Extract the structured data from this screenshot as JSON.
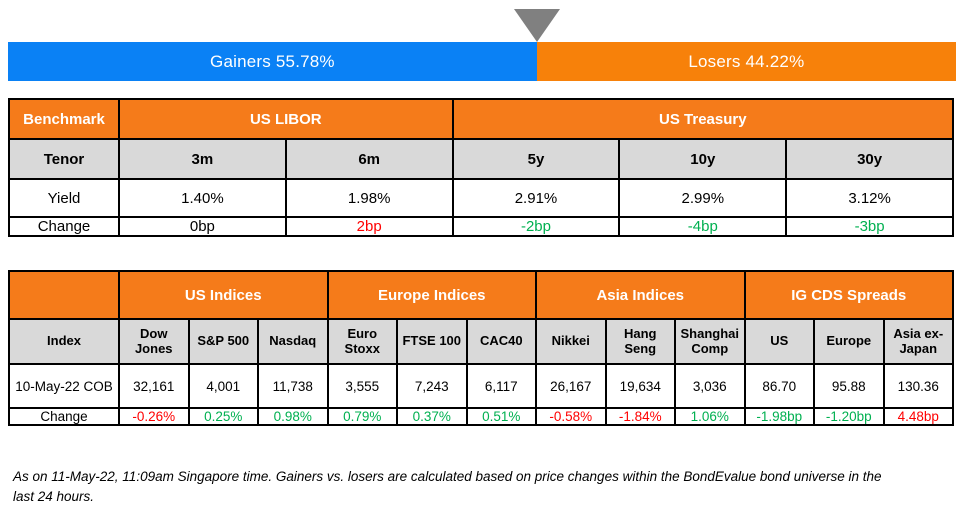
{
  "palette": {
    "blue": "#0A81F5",
    "bar_orange": "#F7810A",
    "header_orange": "#F57B1A",
    "subheader_gray": "#D9D9D9",
    "green": "#00B050",
    "red": "#FF0000",
    "triangle_gray": "#808080",
    "border_black": "#000000"
  },
  "gainers_losers": {
    "gainers_label": "Gainers 55.78%",
    "losers_label": "Losers 44.22%",
    "gainers_pct": 55.78,
    "losers_pct": 44.22
  },
  "benchmark_table": {
    "corner_label": "Benchmark",
    "groups": [
      {
        "label": "US LIBOR",
        "span": 2
      },
      {
        "label": "US Treasury",
        "span": 3
      }
    ],
    "rows": [
      {
        "label": "Tenor",
        "type": "subheader",
        "cells": [
          {
            "text": "3m"
          },
          {
            "text": "6m"
          },
          {
            "text": "5y"
          },
          {
            "text": "10y"
          },
          {
            "text": "30y"
          }
        ]
      },
      {
        "label": "Yield",
        "type": "data",
        "cells": [
          {
            "text": "1.40%"
          },
          {
            "text": "1.98%"
          },
          {
            "text": "2.91%"
          },
          {
            "text": "2.99%"
          },
          {
            "text": "3.12%"
          }
        ]
      },
      {
        "label": "Change",
        "type": "data",
        "cells": [
          {
            "text": "0bp"
          },
          {
            "text": "2bp",
            "color": "red"
          },
          {
            "text": "-2bp",
            "color": "green"
          },
          {
            "text": "-4bp",
            "color": "green"
          },
          {
            "text": "-3bp",
            "color": "green"
          }
        ]
      }
    ]
  },
  "indices_table": {
    "corner_label": "",
    "column_header_label": "Index",
    "groups": [
      {
        "label": "US Indices",
        "span": 3
      },
      {
        "label": "Europe Indices",
        "span": 3
      },
      {
        "label": "Asia Indices",
        "span": 3
      },
      {
        "label": "IG CDS Spreads",
        "span": 3
      }
    ],
    "columns": [
      "Dow Jones",
      "S&P 500",
      "Nasdaq",
      "Euro Stoxx",
      "FTSE 100",
      "CAC40",
      "Nikkei",
      "Hang Seng",
      "Shanghai Comp",
      "US",
      "Europe",
      "Asia ex-Japan"
    ],
    "rows": [
      {
        "label": "10-May-22 COB",
        "type": "data",
        "cells": [
          {
            "text": "32,161"
          },
          {
            "text": "4,001"
          },
          {
            "text": "11,738"
          },
          {
            "text": "3,555"
          },
          {
            "text": "7,243"
          },
          {
            "text": "6,117"
          },
          {
            "text": "26,167"
          },
          {
            "text": "19,634"
          },
          {
            "text": "3,036"
          },
          {
            "text": "86.70"
          },
          {
            "text": "95.88"
          },
          {
            "text": "130.36"
          }
        ]
      },
      {
        "label": "Change",
        "type": "data",
        "cells": [
          {
            "text": "-0.26%",
            "color": "red"
          },
          {
            "text": "0.25%",
            "color": "green"
          },
          {
            "text": "0.98%",
            "color": "green"
          },
          {
            "text": "0.79%",
            "color": "green"
          },
          {
            "text": "0.37%",
            "color": "green"
          },
          {
            "text": "0.51%",
            "color": "green"
          },
          {
            "text": "-0.58%",
            "color": "red"
          },
          {
            "text": "-1.84%",
            "color": "red"
          },
          {
            "text": "1.06%",
            "color": "green"
          },
          {
            "text": "-1.98bp",
            "color": "green"
          },
          {
            "text": "-1.20bp",
            "color": "green"
          },
          {
            "text": "4.48bp",
            "color": "red"
          }
        ]
      }
    ]
  },
  "footer": {
    "note": "As on 11-May-22, 11:09am Singapore time. Gainers vs. losers are calculated based on price changes within the BondEvalue bond universe in the last 24 hours."
  },
  "chart_data": [
    {
      "type": "bar",
      "title": "Gainers vs. Losers",
      "categories": [
        "Gainers",
        "Losers"
      ],
      "values": [
        55.78,
        44.22
      ],
      "unit": "%",
      "layout": "horizontal 100% stacked bar with marker at split",
      "colors": [
        "#0A81F5",
        "#F7810A"
      ]
    },
    {
      "type": "table",
      "title": "Benchmark",
      "column_groups": [
        "US LIBOR (3m, 6m)",
        "US Treasury (5y, 10y, 30y)"
      ],
      "columns": [
        "Tenor",
        "3m",
        "6m",
        "5y",
        "10y",
        "30y"
      ],
      "rows": [
        [
          "Yield",
          "1.40%",
          "1.98%",
          "2.91%",
          "2.99%",
          "3.12%"
        ],
        [
          "Change",
          "0bp",
          "2bp",
          "-2bp",
          "-4bp",
          "-3bp"
        ]
      ]
    },
    {
      "type": "table",
      "title": "Indices and IG CDS Spreads",
      "column_groups": [
        "US Indices",
        "Europe Indices",
        "Asia Indices",
        "IG CDS Spreads"
      ],
      "columns": [
        "Index",
        "Dow Jones",
        "S&P 500",
        "Nasdaq",
        "Euro Stoxx",
        "FTSE 100",
        "CAC40",
        "Nikkei",
        "Hang Seng",
        "Shanghai Comp",
        "US",
        "Europe",
        "Asia ex-Japan"
      ],
      "rows": [
        [
          "10-May-22 COB",
          32161,
          4001,
          11738,
          3555,
          7243,
          6117,
          26167,
          19634,
          3036,
          86.7,
          95.88,
          130.36
        ],
        [
          "Change",
          "-0.26%",
          "0.25%",
          "0.98%",
          "0.79%",
          "0.37%",
          "0.51%",
          "-0.58%",
          "-1.84%",
          "1.06%",
          "-1.98bp",
          "-1.20bp",
          "4.48bp"
        ]
      ]
    }
  ]
}
